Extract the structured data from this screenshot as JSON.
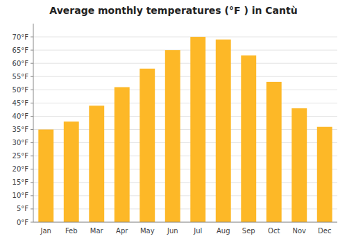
{
  "chart_data": {
    "type": "bar",
    "title": "Average monthly temperatures (°F ) in Cantù",
    "categories": [
      "Jan",
      "Feb",
      "Mar",
      "Apr",
      "May",
      "Jun",
      "Jul",
      "Aug",
      "Sep",
      "Oct",
      "Nov",
      "Dec"
    ],
    "values": [
      35,
      38,
      44,
      51,
      58,
      65,
      70,
      69,
      63,
      53,
      43,
      36
    ],
    "color": "#FDB827",
    "ylim": [
      0,
      75
    ],
    "yticks": [
      {
        "value": 0,
        "label": "0°F"
      },
      {
        "value": 5,
        "label": "5°F"
      },
      {
        "value": 10,
        "label": "10°F"
      },
      {
        "value": 15,
        "label": "15°F"
      },
      {
        "value": 20,
        "label": "20°F"
      },
      {
        "value": 25,
        "label": "25°F"
      },
      {
        "value": 30,
        "label": "30°F"
      },
      {
        "value": 35,
        "label": "35°F"
      },
      {
        "value": 40,
        "label": "40°F"
      },
      {
        "value": 45,
        "label": "45°F"
      },
      {
        "value": 50,
        "label": "50°F"
      },
      {
        "value": 55,
        "label": "55°F"
      },
      {
        "value": 60,
        "label": "60°F"
      },
      {
        "value": 65,
        "label": "65°F"
      },
      {
        "value": 70,
        "label": "70°F"
      }
    ],
    "grid": true
  }
}
